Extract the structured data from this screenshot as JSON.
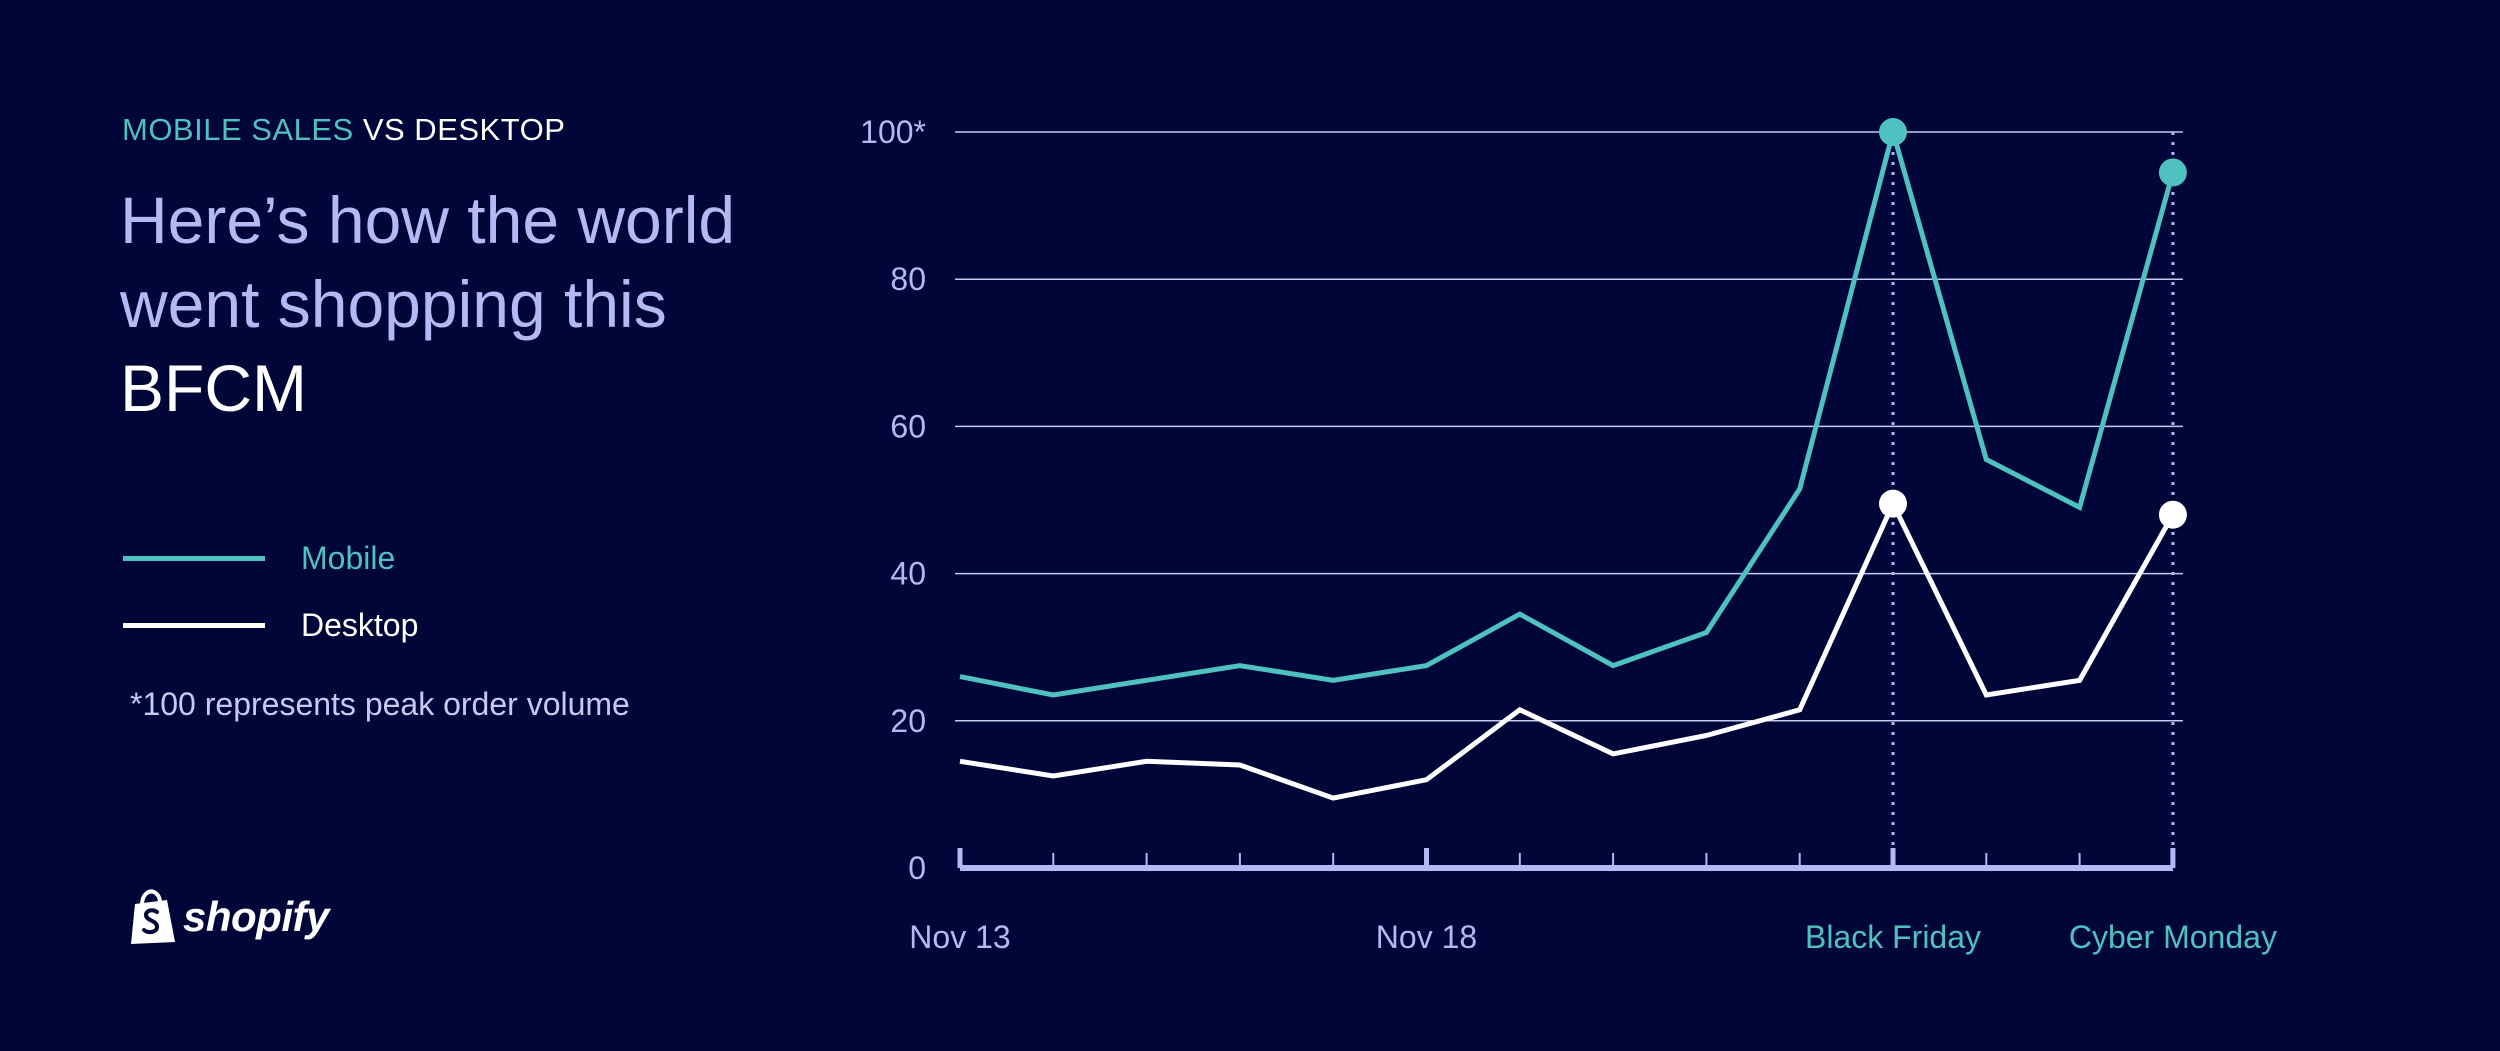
{
  "header": {
    "eyebrow_accent": "MOBILE SALES",
    "eyebrow_rest": "VS DESKTOP",
    "title_line": "Here’s how the world went shopping this",
    "title_emphasis": "BFCM"
  },
  "legend": [
    {
      "label": "Mobile",
      "color": "#4fc1c0"
    },
    {
      "label": "Desktop",
      "color": "#ffffff"
    }
  ],
  "footnote": "*100 represents peak order volume",
  "brand": {
    "name": "shopify"
  },
  "colors": {
    "background": "#000638",
    "mobile": "#4fc1c0",
    "desktop": "#ffffff",
    "axis": "#b3b9f3",
    "grid": "#c6caf1"
  },
  "chart_data": {
    "type": "line",
    "ylim": [
      0,
      100
    ],
    "y_ticks": [
      {
        "value": 0,
        "label": "0"
      },
      {
        "value": 20,
        "label": "20"
      },
      {
        "value": 40,
        "label": "40"
      },
      {
        "value": 60,
        "label": "60"
      },
      {
        "value": 80,
        "label": "80"
      },
      {
        "value": 100,
        "label": "100*"
      }
    ],
    "grid": true,
    "x_labels": [
      {
        "x": 0,
        "label": "Nov 13",
        "highlight": false
      },
      {
        "x": 5,
        "label": "Nov 18",
        "highlight": false
      },
      {
        "x": 10,
        "label": "Black Friday",
        "highlight": true
      },
      {
        "x": 13,
        "label": "Cyber Monday",
        "highlight": true
      }
    ],
    "series": [
      {
        "name": "Mobile",
        "x": [
          0,
          1,
          2,
          3,
          4,
          5,
          6,
          7,
          8,
          9,
          10,
          11,
          12,
          13
        ],
        "values": [
          26,
          23.5,
          25.5,
          27.5,
          25.5,
          27.5,
          34.5,
          27.5,
          32,
          51.5,
          100,
          55.5,
          49,
          94.5
        ],
        "markers": [
          10,
          13
        ]
      },
      {
        "name": "Desktop",
        "x": [
          0,
          1,
          2,
          3,
          4,
          5,
          6,
          7,
          8,
          9,
          10,
          11,
          12,
          13
        ],
        "values": [
          14.5,
          12.5,
          14.5,
          14,
          9.5,
          12,
          21.5,
          15.5,
          18,
          21.5,
          49.5,
          23.5,
          25.5,
          48
        ],
        "markers": [
          10,
          13
        ]
      }
    ]
  }
}
